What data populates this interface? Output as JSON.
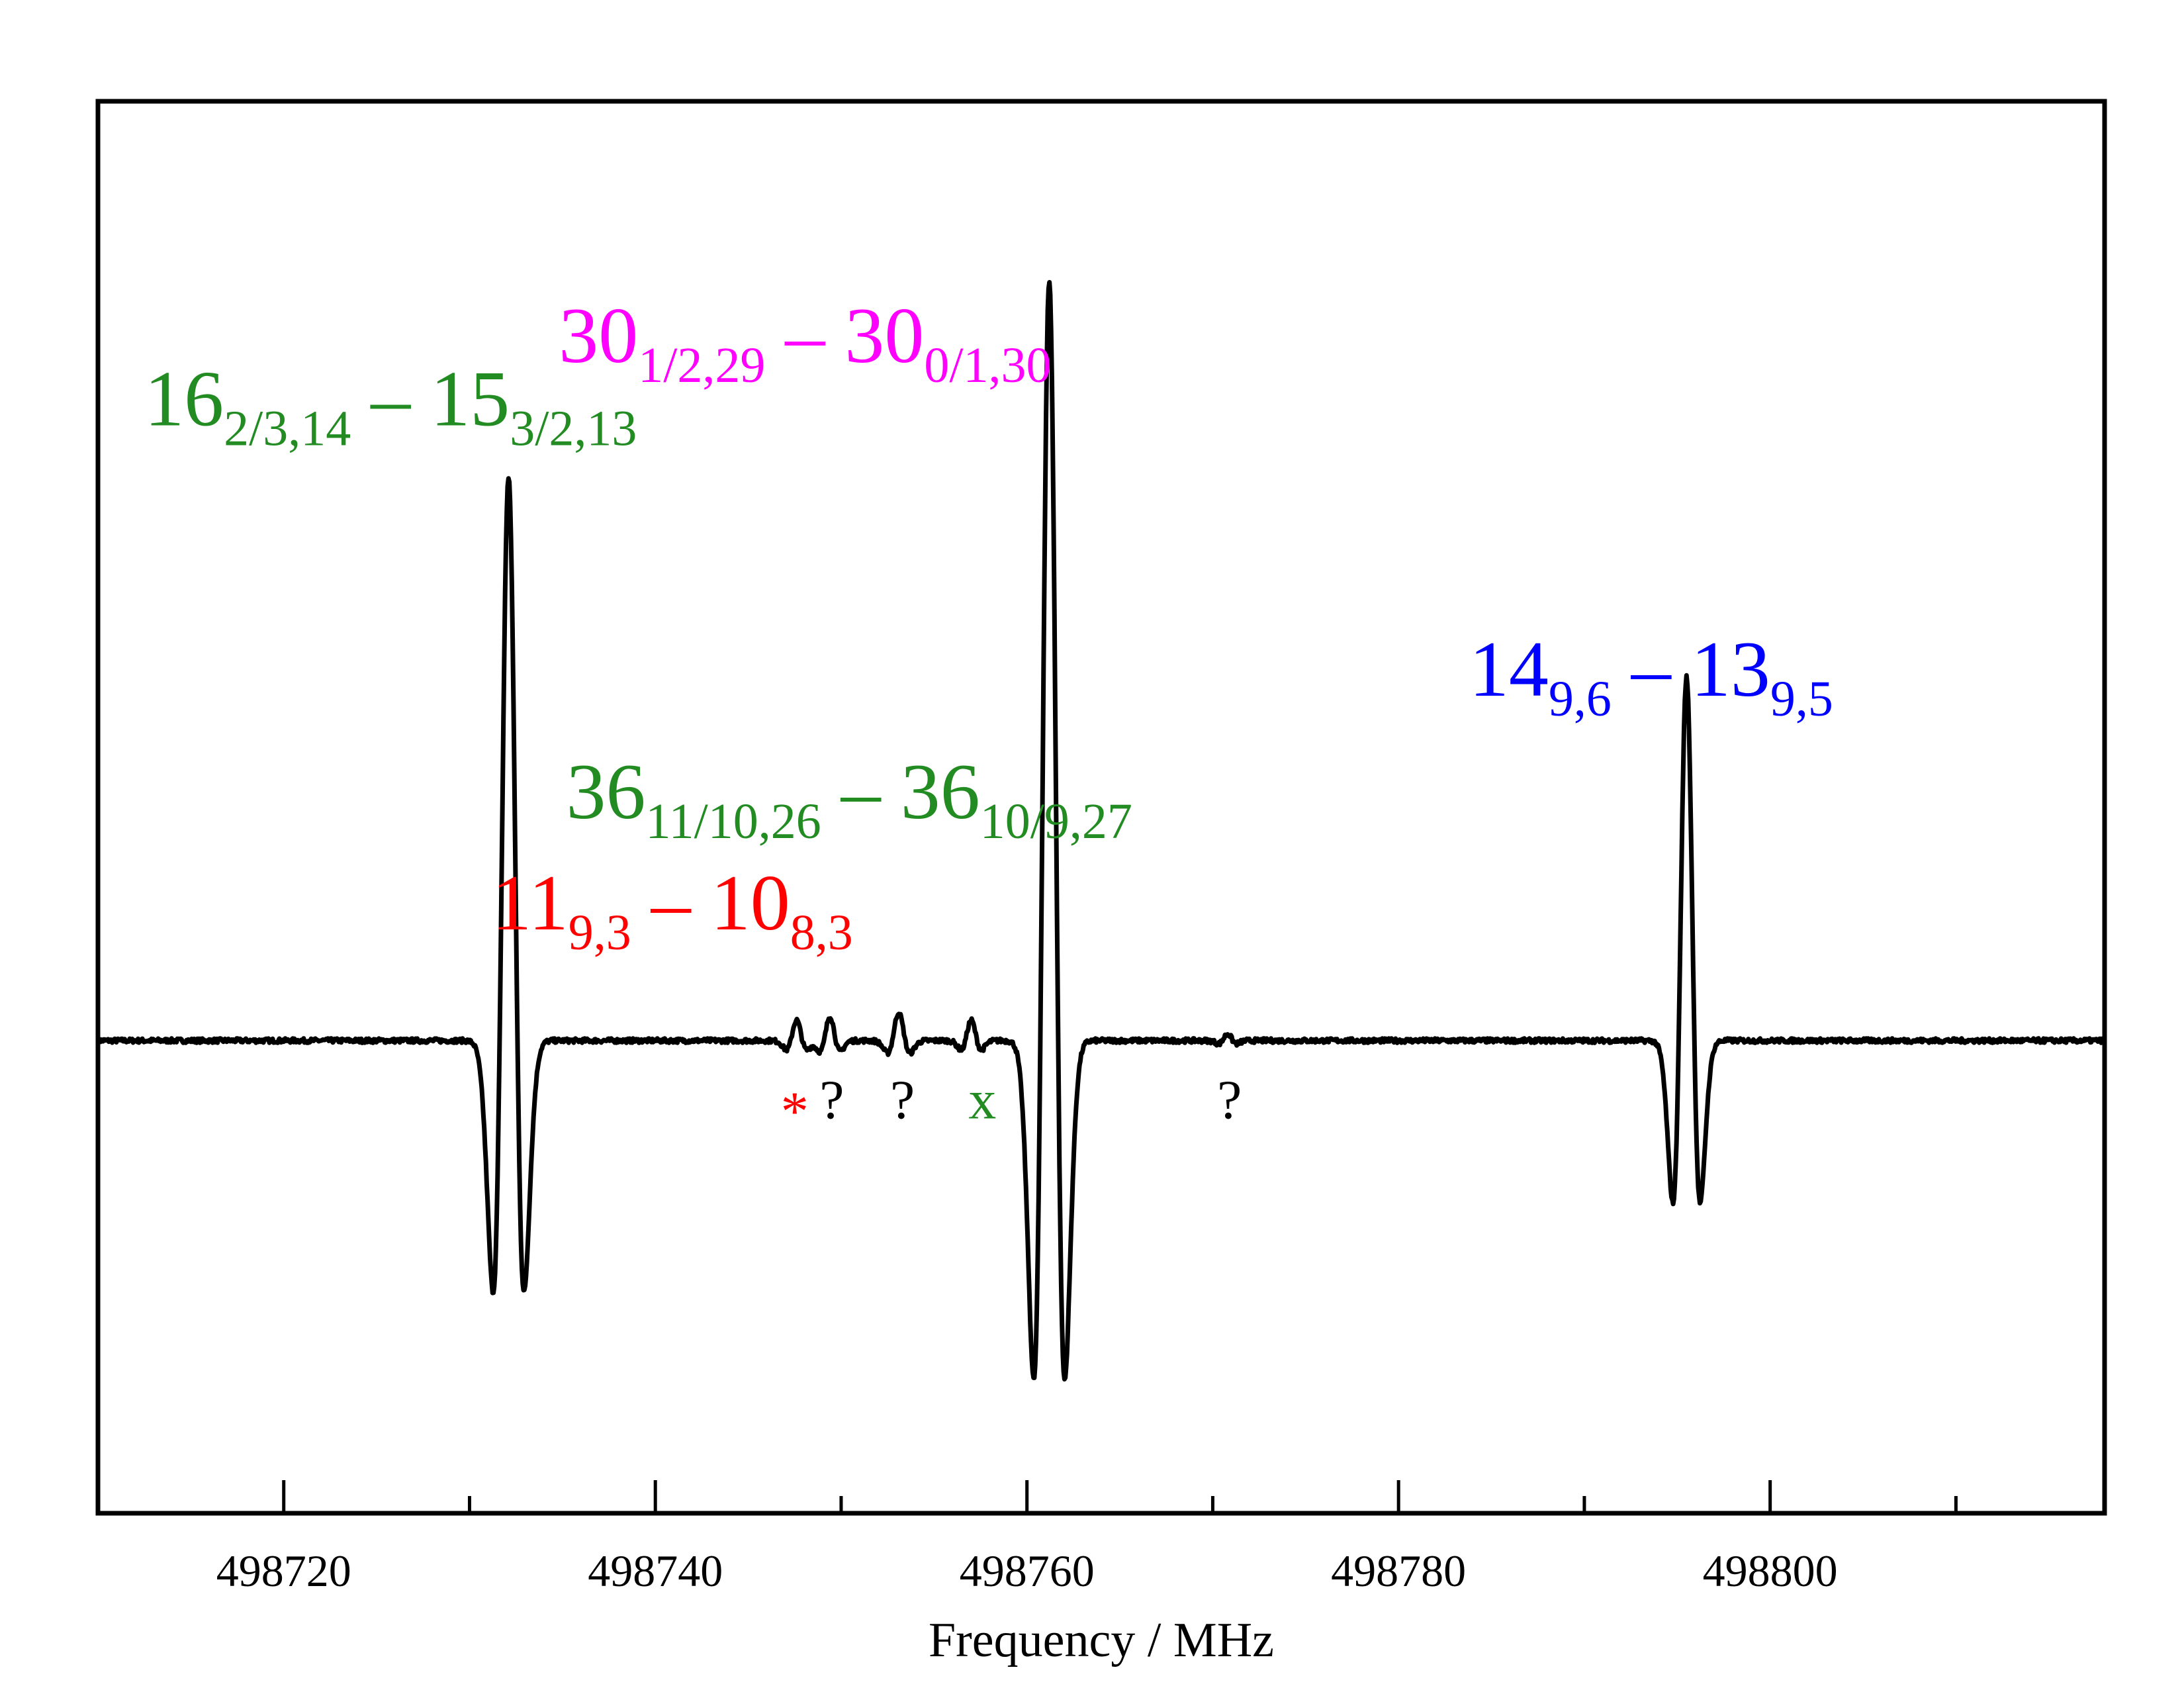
{
  "chart_data": {
    "type": "line",
    "xlabel": "Frequency / MHz",
    "ylabel": "",
    "xlim": [
      498710,
      498818
    ],
    "ylim": [
      -1.1,
      2.1
    ],
    "xticks_major": [
      498720,
      498740,
      498760,
      498780,
      498800
    ],
    "xtick_labels": [
      "498720",
      "498740",
      "498760",
      "498780",
      "498800"
    ],
    "xticks_minor": [
      498730,
      498750,
      498770,
      498790,
      498810
    ],
    "grid": false,
    "line_color": "#000000",
    "spectrum_lines": [
      {
        "center": 498732.1,
        "amplitude": 1.52,
        "sigma": 0.68
      },
      {
        "center": 498761.2,
        "amplitude": 2.05,
        "sigma": 0.68
      },
      {
        "center": 498795.5,
        "amplitude": 0.98,
        "sigma": 0.6
      },
      {
        "center": 498747.6,
        "amplitude": 0.055,
        "sigma": 0.45
      },
      {
        "center": 498749.4,
        "amplitude": 0.065,
        "sigma": 0.45
      },
      {
        "center": 498753.1,
        "amplitude": 0.075,
        "sigma": 0.5
      },
      {
        "center": 498757.0,
        "amplitude": 0.055,
        "sigma": 0.45
      },
      {
        "center": 498770.8,
        "amplitude": 0.018,
        "sigma": 0.4
      }
    ],
    "annotations": [
      {
        "id": "ann-16",
        "color": "#228B22",
        "anchor_x": 498712.5,
        "anchor_y": 1.66,
        "parts": [
          [
            "16",
            "main"
          ],
          [
            "2/3,14",
            "sub"
          ],
          [
            " – 15",
            "main"
          ],
          [
            "3/2,13",
            "sub"
          ]
        ]
      },
      {
        "id": "ann-30",
        "color": "#FF00FF",
        "anchor_x": 498734.8,
        "anchor_y": 1.83,
        "parts": [
          [
            "30",
            "main"
          ],
          [
            "1/2,29",
            "sub"
          ],
          [
            " – 30",
            "main"
          ],
          [
            "0/1,30",
            "sub"
          ]
        ]
      },
      {
        "id": "ann-14",
        "color": "#0000FF",
        "anchor_x": 498783.8,
        "anchor_y": 0.93,
        "parts": [
          [
            "14",
            "main"
          ],
          [
            "9,6",
            "sub"
          ],
          [
            " – 13",
            "main"
          ],
          [
            "9,5",
            "sub"
          ]
        ]
      },
      {
        "id": "ann-36",
        "color": "#228B22",
        "anchor_x": 498735.2,
        "anchor_y": 0.6,
        "parts": [
          [
            "36",
            "main"
          ],
          [
            "11/10,26",
            "sub"
          ],
          [
            " – 36",
            "main"
          ],
          [
            "10/9,27",
            "sub"
          ]
        ]
      },
      {
        "id": "ann-11",
        "color": "#FF0000",
        "anchor_x": 498731.2,
        "anchor_y": 0.3,
        "parts": [
          [
            "11",
            "main"
          ],
          [
            "9,3",
            "sub"
          ],
          [
            " – 10",
            "main"
          ],
          [
            "8,3",
            "sub"
          ]
        ]
      }
    ],
    "markers": [
      {
        "text": "*",
        "color": "#FF0000",
        "x": 498747.5,
        "y": -0.24
      },
      {
        "text": "?",
        "color": "#000000",
        "x": 498749.5,
        "y": -0.21
      },
      {
        "text": "?",
        "color": "#000000",
        "x": 498753.3,
        "y": -0.21
      },
      {
        "text": "x",
        "color": "#228B22",
        "x": 498757.6,
        "y": -0.21
      },
      {
        "text": "?",
        "color": "#000000",
        "x": 498770.9,
        "y": -0.21
      }
    ]
  }
}
